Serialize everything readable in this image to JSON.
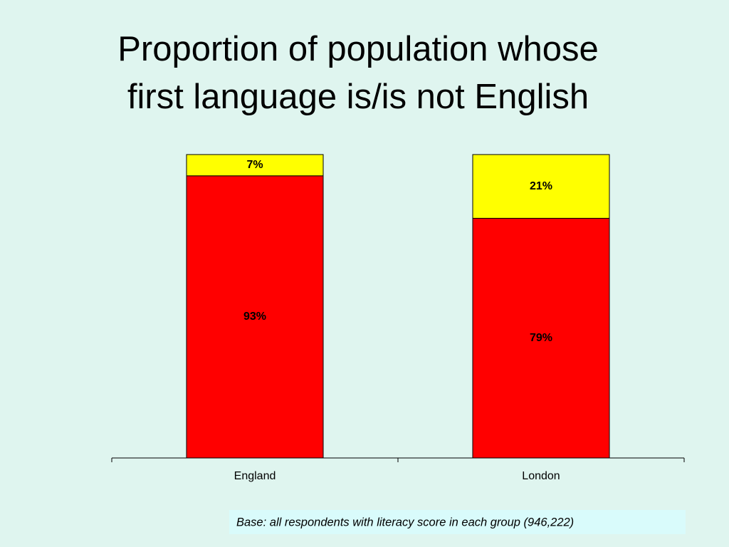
{
  "chart_data": {
    "type": "stacked-bar",
    "title": [
      "Proportion of population whose",
      "first language is/is not English"
    ],
    "categories": [
      "England",
      "London"
    ],
    "series": [
      {
        "color": "#ff0000",
        "values": [
          93,
          79
        ],
        "value_labels": [
          "93%",
          "79%"
        ]
      },
      {
        "color": "#ffff00",
        "values": [
          7,
          21
        ],
        "value_labels": [
          "7%",
          "21%"
        ]
      }
    ],
    "ylim": [
      0,
      100
    ],
    "footnote": "Base: all respondents with literacy score in each group (946,222)"
  }
}
